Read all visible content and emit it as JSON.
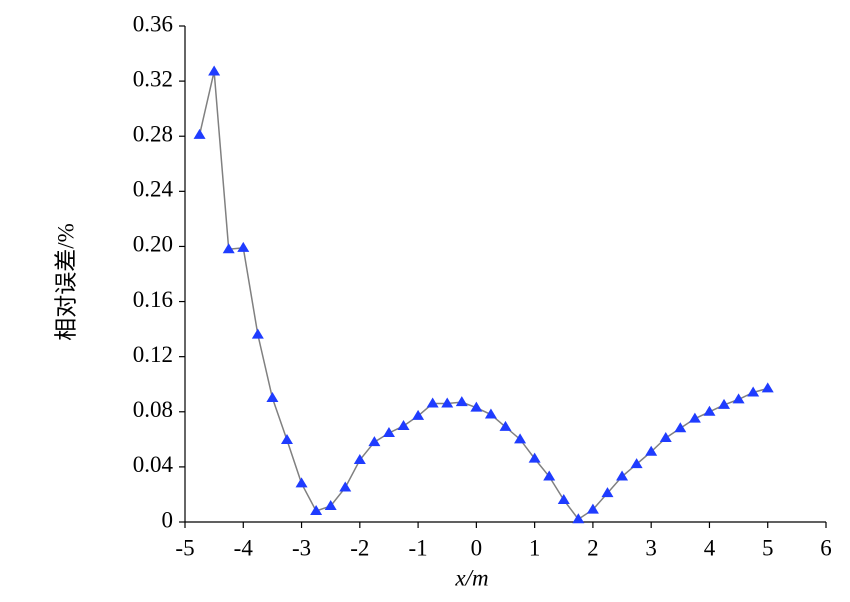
{
  "chart_data": {
    "type": "line",
    "xlabel": "x/m",
    "ylabel": "相对误差/%",
    "x": [
      -4.75,
      -4.5,
      -4.25,
      -4.0,
      -3.75,
      -3.5,
      -3.25,
      -3.0,
      -2.75,
      -2.5,
      -2.25,
      -2.0,
      -1.75,
      -1.5,
      -1.25,
      -1.0,
      -0.75,
      -0.5,
      -0.25,
      0,
      0.25,
      0.5,
      0.75,
      1.0,
      1.25,
      1.5,
      1.75,
      2.0,
      2.25,
      2.5,
      2.75,
      3.0,
      3.25,
      3.5,
      3.75,
      4.0,
      4.25,
      4.5,
      4.75,
      5.0
    ],
    "series": [
      {
        "color": "#1f3cff",
        "line_color": "#808080",
        "values": [
          0.281,
          0.327,
          0.198,
          0.199,
          0.136,
          0.09,
          0.0595,
          0.028,
          0.008,
          0.0116,
          0.025,
          0.045,
          0.058,
          0.0646,
          0.0697,
          0.077,
          0.086,
          0.086,
          0.087,
          0.083,
          0.078,
          0.069,
          0.06,
          0.046,
          0.033,
          0.016,
          0.002,
          0.009,
          0.021,
          0.033,
          0.042,
          0.051,
          0.061,
          0.068,
          0.075,
          0.08,
          0.085,
          0.089,
          0.094,
          0.097
        ]
      }
    ],
    "xlim": [
      -5,
      6
    ],
    "xticks": [
      -5,
      -4,
      -3,
      -2,
      -1,
      0,
      1,
      2,
      3,
      4,
      5,
      6
    ],
    "ylim": [
      0,
      0.36
    ],
    "yticks": [
      0,
      0.04,
      0.08,
      0.12,
      0.16,
      {
        "value": 0.2,
        "label": "0.20"
      },
      0.24,
      0.28,
      0.32,
      0.36
    ],
    "grid": false
  }
}
